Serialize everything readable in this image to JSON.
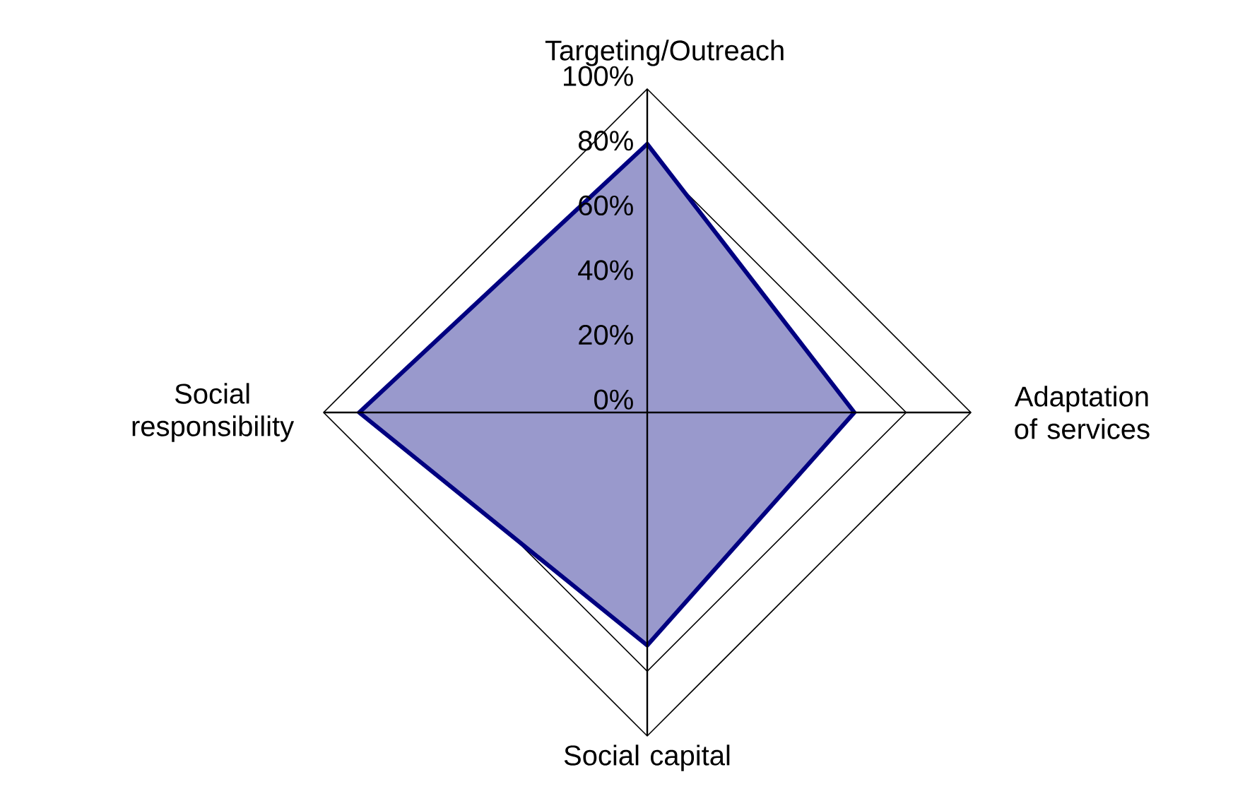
{
  "chart_data": {
    "type": "radar",
    "categories": [
      "Targeting/Outreach",
      "Adaptation of services",
      "Social capital",
      "Social responsibility"
    ],
    "series": [
      {
        "color": "#000080",
        "values": [
          83,
          64,
          72,
          89
        ]
      }
    ],
    "ylim": [
      0,
      100
    ],
    "yticks": [
      {
        "value": 0,
        "label": "0%"
      },
      {
        "value": 20,
        "label": "20%"
      },
      {
        "value": 40,
        "label": "40%"
      },
      {
        "value": 60,
        "label": "60%"
      },
      {
        "value": 80,
        "label": "80%"
      },
      {
        "value": 100,
        "label": "100%"
      }
    ],
    "grid": true
  }
}
